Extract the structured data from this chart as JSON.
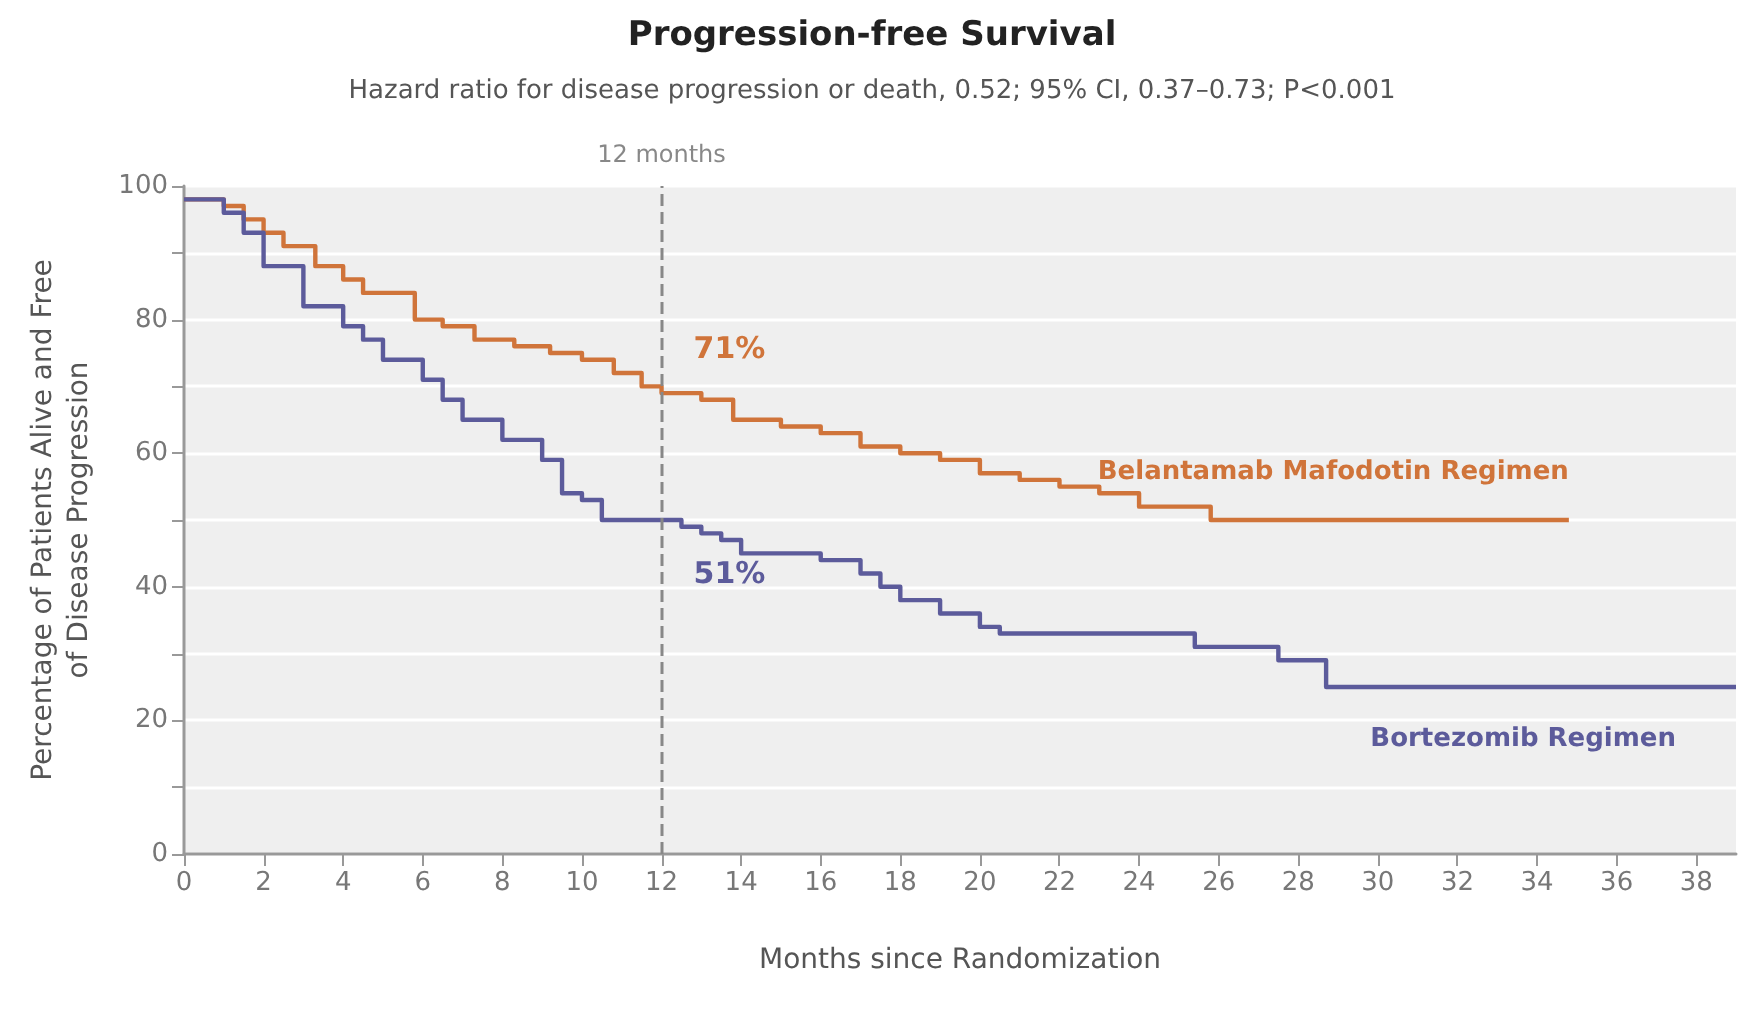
{
  "chart_data": {
    "type": "step",
    "title": "Progression-free Survival",
    "subtitle": "Hazard ratio for disease progression or death, 0.52; 95% CI, 0.37–0.73; P<0.001",
    "xlabel": "Months since Randomization",
    "ylabel": "Percentage of Patients Alive and Free\nof Disease Progression",
    "xlim": [
      0,
      39
    ],
    "xticks": [
      0,
      2,
      4,
      6,
      8,
      10,
      12,
      14,
      16,
      18,
      20,
      22,
      24,
      26,
      28,
      30,
      32,
      34,
      36,
      38
    ],
    "ylim": [
      0,
      100
    ],
    "yticks": [
      0,
      {
        "value": 10,
        "label": null
      },
      20,
      {
        "value": 30,
        "label": null
      },
      40,
      {
        "value": 50,
        "label": null
      },
      60,
      {
        "value": 70,
        "label": null
      },
      80,
      {
        "value": 90,
        "label": null
      },
      100
    ],
    "grid": "y",
    "legend": false,
    "marker": "none",
    "line_style": "solid",
    "series": [
      {
        "name": "Belantamab Mafodotin Regimen",
        "color": "#d0743a",
        "x": [
          0,
          1,
          1.5,
          2,
          2.5,
          3.3,
          4,
          4.5,
          5.8,
          6.5,
          7.3,
          8.3,
          9.2,
          10,
          10.8,
          11.5,
          12,
          13,
          13.8,
          15,
          16,
          17,
          18,
          19,
          20,
          21,
          22,
          23,
          24,
          25.8,
          34.8
        ],
        "values": [
          98,
          97,
          95,
          93,
          91,
          88,
          86,
          84,
          80,
          79,
          77,
          76,
          75,
          74,
          72,
          70,
          69,
          68,
          65,
          64,
          63,
          61,
          60,
          59,
          57,
          56,
          55,
          54,
          52,
          50,
          50
        ]
      },
      {
        "name": "Bortezomib Regimen",
        "color": "#5c5b9b",
        "x": [
          0,
          1,
          1.5,
          2,
          3,
          4,
          4.5,
          5,
          6,
          6.5,
          7,
          8,
          9,
          9.5,
          10,
          10.5,
          12.5,
          13,
          13.5,
          14,
          16,
          17,
          17.5,
          18,
          19,
          20,
          20.5,
          25.4,
          27.5,
          28.7,
          39
        ],
        "values": [
          98,
          96,
          93,
          88,
          82,
          79,
          77,
          74,
          71,
          68,
          65,
          62,
          59,
          54,
          53,
          50,
          49,
          48,
          47,
          45,
          44,
          42,
          40,
          38,
          36,
          34,
          33,
          31,
          29,
          25,
          25
        ]
      }
    ],
    "ref_lines": [
      {
        "axis": "x",
        "value": 12,
        "label": "12 months",
        "line_style": "dashed",
        "color": "#888888"
      }
    ],
    "annotations": [
      {
        "text": "71%",
        "x": 12,
        "y": 71
      },
      {
        "text": "51%",
        "x": 12,
        "y": 51
      }
    ]
  }
}
